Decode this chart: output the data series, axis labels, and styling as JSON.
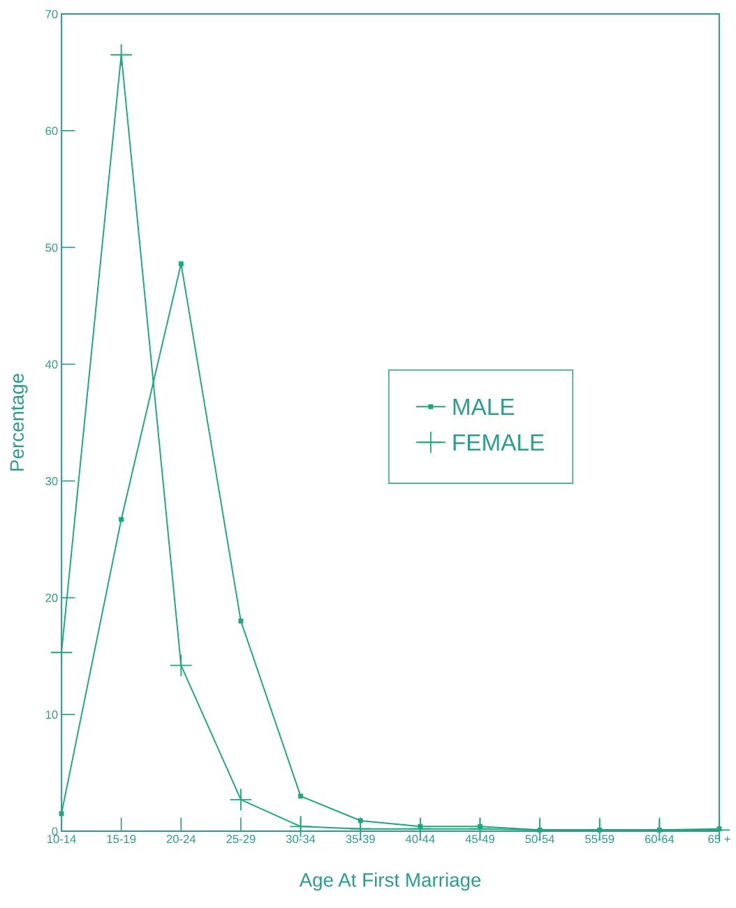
{
  "chart_data": {
    "type": "line",
    "xlabel": "Age At First Marriage",
    "ylabel": "Percentage",
    "categories": [
      "10-14",
      "15-19",
      "20-24",
      "25-29",
      "30-34",
      "35-39",
      "40-44",
      "45-49",
      "50-54",
      "55-59",
      "60-64",
      "65 +"
    ],
    "series": [
      {
        "name": "MALE",
        "color": "#1aa87c",
        "marker": "square",
        "values": [
          1.5,
          26.7,
          48.6,
          18.0,
          3.0,
          0.9,
          0.4,
          0.4,
          0.1,
          0.1,
          0.1,
          0.2
        ]
      },
      {
        "name": "FEMALE",
        "color": "#1aa87c",
        "marker": "cross",
        "values": [
          15.3,
          66.5,
          14.2,
          2.7,
          0.4,
          0.2,
          0.2,
          0.2,
          0.1,
          0.1,
          0.1,
          0.1
        ]
      }
    ],
    "ylim": [
      0,
      70
    ],
    "yticks": [
      0,
      10,
      20,
      30,
      40,
      50,
      60,
      70
    ],
    "grid": false,
    "legend": "center",
    "line_style": "solid"
  }
}
